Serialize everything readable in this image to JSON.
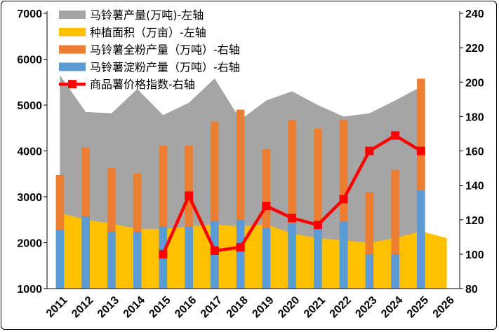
{
  "chart_data": {
    "type": "combo",
    "categories": [
      "2011",
      "2012",
      "2013",
      "2014",
      "2015",
      "2016",
      "2017",
      "2018",
      "2019",
      "2020",
      "2021",
      "2022",
      "2023",
      "2024",
      "2025",
      "2026"
    ],
    "left_axis": {
      "range": [
        1000,
        7000
      ],
      "ticks": [
        "1000",
        "2000",
        "3000",
        "4000",
        "5000",
        "6000",
        "7000"
      ]
    },
    "right_axis": {
      "range": [
        80,
        240
      ],
      "ticks": [
        "80",
        "100",
        "120",
        "140",
        "160",
        "180",
        "200",
        "220",
        "240"
      ]
    },
    "grid": false,
    "legend_position": "top-left",
    "series": [
      {
        "name": "马铃薯产量(万吨)-左轴",
        "type": "area",
        "axis": "left",
        "color": "#a5a5a5",
        "values": [
          5650,
          4850,
          4820,
          5350,
          4780,
          5050,
          5580,
          4680,
          5100,
          5300,
          5000,
          4750,
          4820,
          5100,
          5400,
          null
        ]
      },
      {
        "name": "种植面积（万亩）-左轴",
        "type": "area",
        "axis": "left",
        "color": "#ffc000",
        "values": [
          2650,
          2500,
          2420,
          2300,
          2300,
          2350,
          2400,
          2350,
          2400,
          2200,
          2100,
          2050,
          2000,
          2100,
          2250,
          2100
        ]
      },
      {
        "name": "马铃薯全粉产量（万吨）-右轴",
        "type": "bar",
        "axis": "right",
        "color": "#ed7d31",
        "values": [
          146,
          162,
          150,
          147,
          163,
          163,
          177,
          184,
          161,
          178,
          173,
          178,
          136,
          149,
          202,
          null
        ]
      },
      {
        "name": "马铃薯淀粉产量（万吨）-右轴",
        "type": "bar",
        "axis": "right",
        "color": "#5b9bd5",
        "values": [
          114,
          122,
          113,
          113,
          116,
          116,
          119,
          120,
          115,
          118,
          115,
          119,
          100,
          100,
          137,
          null
        ]
      },
      {
        "name": "商品薯价格指数-右轴",
        "type": "line",
        "axis": "right",
        "color": "#ff0000",
        "values": [
          null,
          null,
          null,
          null,
          100,
          134,
          102,
          104,
          128,
          121,
          117,
          132,
          160,
          169,
          160,
          null
        ]
      }
    ]
  }
}
